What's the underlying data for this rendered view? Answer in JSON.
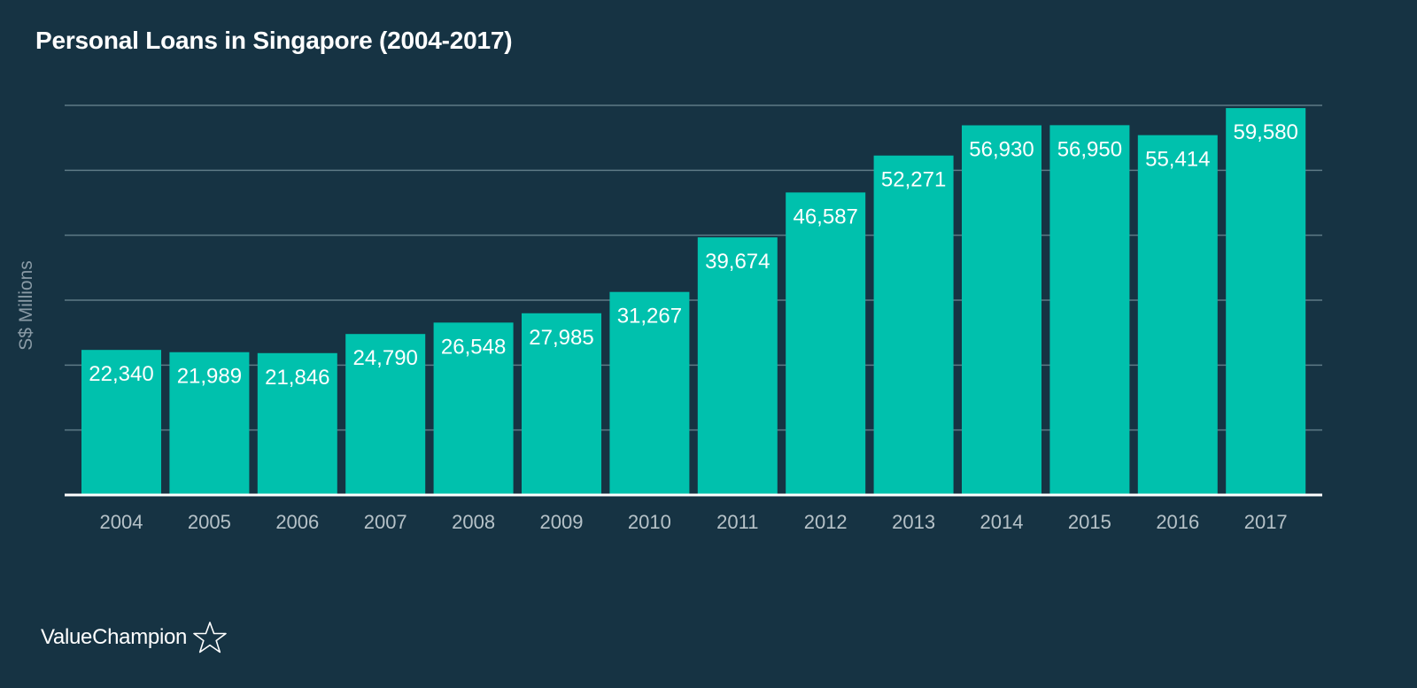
{
  "chart_data": {
    "type": "bar",
    "title": "Personal Loans in Singapore (2004-2017)",
    "ylabel": "S$ Millions",
    "xlabel": "",
    "categories": [
      "2004",
      "2005",
      "2006",
      "2007",
      "2008",
      "2009",
      "2010",
      "2011",
      "2012",
      "2013",
      "2014",
      "2015",
      "2016",
      "2017"
    ],
    "values": [
      22340,
      21989,
      21846,
      24790,
      26548,
      27985,
      31267,
      39674,
      46587,
      52271,
      56930,
      56950,
      55414,
      59580
    ],
    "value_labels": [
      "22,340",
      "21,989",
      "21,846",
      "24,790",
      "26,548",
      "27,985",
      "31,267",
      "39,674",
      "46,587",
      "52,271",
      "56,930",
      "56,950",
      "55,414",
      "59,580"
    ],
    "ylim": [
      0,
      60000
    ],
    "grid": true,
    "ytick_labels_shown": false,
    "colors": {
      "background": "#163343",
      "bar": "#00c1ad",
      "grid": "#5e7a86",
      "axis": "#ffffff",
      "tick_text": "#b6c2c8",
      "value_text": "#ffffff"
    }
  },
  "brand": {
    "name": "ValueChampion",
    "icon": "star-outline-icon"
  }
}
